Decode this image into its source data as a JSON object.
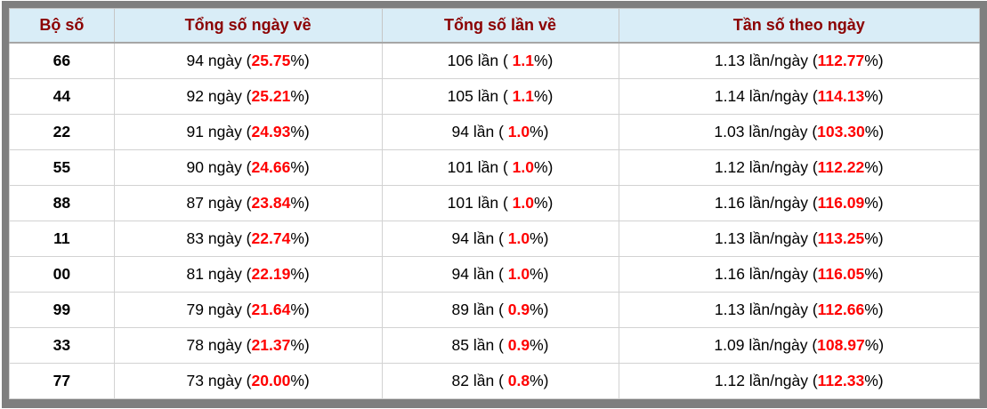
{
  "colors": {
    "frame_border": "#7f7f7f",
    "header_background": "#d9edf7",
    "header_text": "#8b0000",
    "highlight_percent": "#ff0000",
    "body_text": "#000000"
  },
  "table": {
    "columns": [
      {
        "label": "Bộ số"
      },
      {
        "label": "Tổng số ngày về"
      },
      {
        "label": "Tổng số lần về"
      },
      {
        "label": "Tần số theo ngày"
      }
    ],
    "pct_close": "%)",
    "rows": [
      {
        "pair": "66",
        "days": "94 ngày (",
        "days_pct": "25.75",
        "times": "106 lần ( ",
        "times_pct": "1.1",
        "freq": "1.13 lần/ngày (",
        "freq_pct": "112.77"
      },
      {
        "pair": "44",
        "days": "92 ngày (",
        "days_pct": "25.21",
        "times": "105 lần ( ",
        "times_pct": "1.1",
        "freq": "1.14 lần/ngày (",
        "freq_pct": "114.13"
      },
      {
        "pair": "22",
        "days": "91 ngày (",
        "days_pct": "24.93",
        "times": "94 lần ( ",
        "times_pct": "1.0",
        "freq": "1.03 lần/ngày (",
        "freq_pct": "103.30"
      },
      {
        "pair": "55",
        "days": "90 ngày (",
        "days_pct": "24.66",
        "times": "101 lần ( ",
        "times_pct": "1.0",
        "freq": "1.12 lần/ngày (",
        "freq_pct": "112.22"
      },
      {
        "pair": "88",
        "days": "87 ngày (",
        "days_pct": "23.84",
        "times": "101 lần ( ",
        "times_pct": "1.0",
        "freq": "1.16 lần/ngày (",
        "freq_pct": "116.09"
      },
      {
        "pair": "11",
        "days": "83 ngày (",
        "days_pct": "22.74",
        "times": "94 lần ( ",
        "times_pct": "1.0",
        "freq": "1.13 lần/ngày (",
        "freq_pct": "113.25"
      },
      {
        "pair": "00",
        "days": "81 ngày (",
        "days_pct": "22.19",
        "times": "94 lần ( ",
        "times_pct": "1.0",
        "freq": "1.16 lần/ngày (",
        "freq_pct": "116.05"
      },
      {
        "pair": "99",
        "days": "79 ngày (",
        "days_pct": "21.64",
        "times": "89 lần ( ",
        "times_pct": "0.9",
        "freq": "1.13 lần/ngày (",
        "freq_pct": "112.66"
      },
      {
        "pair": "33",
        "days": "78 ngày (",
        "days_pct": "21.37",
        "times": "85 lần ( ",
        "times_pct": "0.9",
        "freq": "1.09 lần/ngày (",
        "freq_pct": "108.97"
      },
      {
        "pair": "77",
        "days": "73 ngày (",
        "days_pct": "20.00",
        "times": "82 lần ( ",
        "times_pct": "0.8",
        "freq": "1.12 lần/ngày (",
        "freq_pct": "112.33"
      }
    ]
  }
}
